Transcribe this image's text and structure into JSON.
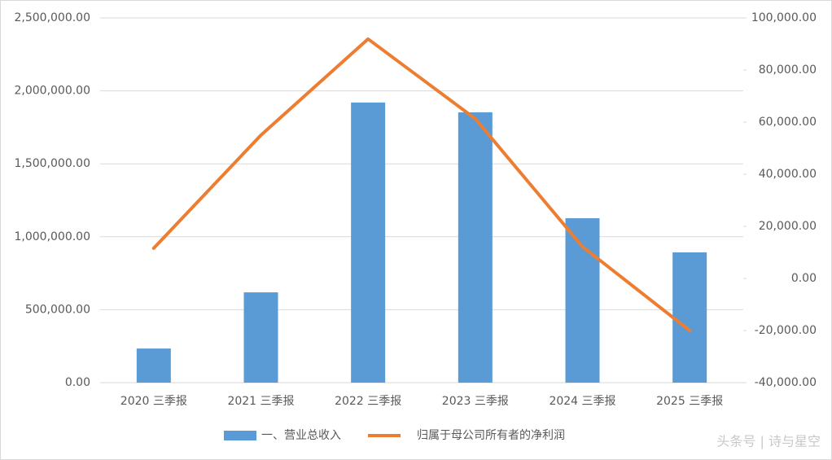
{
  "chart_data": {
    "type": "bar-line",
    "categories": [
      "2020 三季报",
      "2021 三季报",
      "2022 三季报",
      "2023 三季报",
      "2024 三季报",
      "2025 三季报"
    ],
    "series": [
      {
        "name": "一、营业总收入",
        "type": "bar",
        "color": "#5b9bd5",
        "values": [
          234000,
          619000,
          1920000,
          1853000,
          1127000,
          893000
        ]
      },
      {
        "name": "归属于母公司所有者的净利润",
        "type": "line",
        "axis": "y2",
        "color": "#ed7d31",
        "values": [
          11600,
          55000,
          91900,
          61300,
          12200,
          -20000
        ]
      }
    ],
    "ylim": [
      0,
      2500000
    ],
    "yticks": [
      {
        "value": 0,
        "label": "0.00"
      },
      {
        "value": 500000,
        "label": "500,000.00"
      },
      {
        "value": 1000000,
        "label": "1,000,000.00"
      },
      {
        "value": 1500000,
        "label": "1,500,000.00"
      },
      {
        "value": 2000000,
        "label": "2,000,000.00"
      },
      {
        "value": 2500000,
        "label": "2,500,000.00"
      }
    ],
    "y2lim": [
      -40000,
      100000
    ],
    "y2ticks": [
      {
        "value": -40000,
        "label": "-40,000.00"
      },
      {
        "value": -20000,
        "label": "-20,000.00"
      },
      {
        "value": 0,
        "label": "0.00"
      },
      {
        "value": 20000,
        "label": "20,000.00"
      },
      {
        "value": 40000,
        "label": "40,000.00"
      },
      {
        "value": 60000,
        "label": "60,000.00"
      },
      {
        "value": 80000,
        "label": "80,000.00"
      },
      {
        "value": 100000,
        "label": "100,000.00"
      }
    ],
    "grid": true,
    "legend": "bottom",
    "watermark": "头条号 | 诗与星空"
  }
}
